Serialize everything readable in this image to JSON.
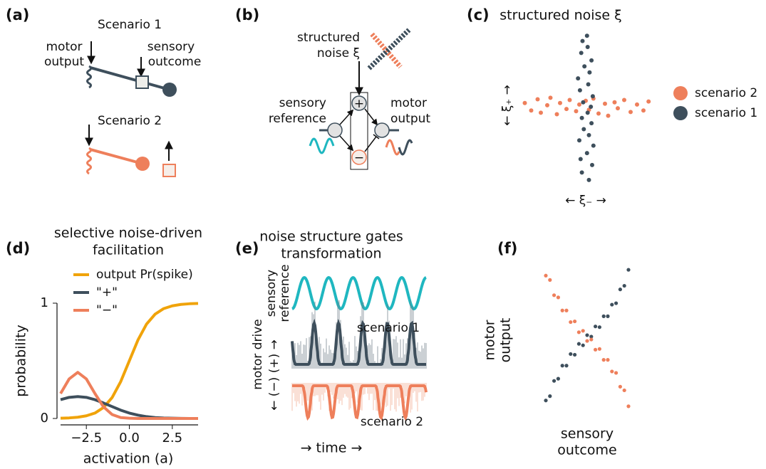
{
  "panel_a": {
    "label": "(a)",
    "scenario_1": "Scenario 1",
    "motor_output": [
      "motor",
      "output"
    ],
    "sensory_outcome": [
      "sensory",
      "outcome"
    ],
    "scenario_2": "Scenario 2"
  },
  "panel_b": {
    "label": "(b)",
    "noise": [
      "structured",
      "noise ξ"
    ],
    "sensory_reference": [
      "sensory",
      "reference"
    ],
    "motor_output": [
      "motor",
      "output"
    ],
    "plus": "+",
    "minus": "−"
  },
  "panel_c": {
    "label": "(c)",
    "type": "scatter",
    "title": "structured noise ξ",
    "y_label": "← ξ₊ →",
    "x_label": "← ξ₋ →",
    "xlim": [
      -1,
      1
    ],
    "ylim": [
      -1,
      1
    ],
    "series": [
      {
        "name": "scenario 2",
        "color": "#ee7f5b",
        "points": [
          [
            -0.95,
            0.05
          ],
          [
            -0.85,
            -0.05
          ],
          [
            -0.75,
            0.1
          ],
          [
            -0.7,
            -0.08
          ],
          [
            -0.6,
            0.02
          ],
          [
            -0.55,
            0.12
          ],
          [
            -0.45,
            -0.1
          ],
          [
            -0.4,
            0.05
          ],
          [
            -0.3,
            -0.03
          ],
          [
            -0.25,
            0.09
          ],
          [
            -0.15,
            -0.06
          ],
          [
            -0.1,
            0.03
          ],
          [
            0,
            0.08
          ],
          [
            0.05,
            -0.04
          ],
          [
            0.12,
            0.11
          ],
          [
            0.2,
            -0.09
          ],
          [
            0.3,
            0.04
          ],
          [
            0.35,
            -0.12
          ],
          [
            0.45,
            0.06
          ],
          [
            0.5,
            -0.02
          ],
          [
            0.6,
            0.09
          ],
          [
            0.7,
            -0.07
          ],
          [
            0.8,
            0.03
          ],
          [
            0.9,
            -0.05
          ],
          [
            0.98,
            0.07
          ]
        ]
      },
      {
        "name": "scenario 1",
        "color": "#3e4f5c",
        "points": [
          [
            0.05,
            -0.98
          ],
          [
            -0.06,
            -0.88
          ],
          [
            0.1,
            -0.78
          ],
          [
            -0.08,
            -0.7
          ],
          [
            0.02,
            -0.62
          ],
          [
            0.12,
            -0.52
          ],
          [
            -0.1,
            -0.45
          ],
          [
            0.05,
            -0.38
          ],
          [
            -0.03,
            -0.3
          ],
          [
            0.09,
            -0.22
          ],
          [
            -0.06,
            -0.15
          ],
          [
            0.03,
            -0.08
          ],
          [
            0.08,
            0
          ],
          [
            -0.04,
            0.06
          ],
          [
            0.11,
            0.14
          ],
          [
            -0.09,
            0.22
          ],
          [
            0.04,
            0.3
          ],
          [
            -0.12,
            0.38
          ],
          [
            0.06,
            0.46
          ],
          [
            -0.02,
            0.54
          ],
          [
            0.09,
            0.62
          ],
          [
            -0.07,
            0.72
          ],
          [
            0.03,
            0.8
          ],
          [
            -0.05,
            0.88
          ],
          [
            0.02,
            0.95
          ]
        ]
      }
    ]
  },
  "panel_d": {
    "label": "(d)",
    "type": "line",
    "title": [
      "selective noise-driven",
      "facilitation"
    ],
    "x_label": "activation (a)",
    "y_label": "probability",
    "x": [
      -4,
      -3.5,
      -3,
      -2.5,
      -2,
      -1.5,
      -1,
      -0.5,
      0,
      0.5,
      1,
      1.5,
      2,
      2.5,
      3,
      3.5,
      4
    ],
    "series": [
      {
        "name": "output Pr(spike)",
        "color": "#f0a30a",
        "values": [
          0.0025,
          0.005,
          0.011,
          0.023,
          0.047,
          0.095,
          0.182,
          0.32,
          0.5,
          0.68,
          0.818,
          0.905,
          0.953,
          0.977,
          0.989,
          0.995,
          0.998
        ]
      },
      {
        "name": "\"+\"",
        "color": "#3e4f5c",
        "values": [
          0.163,
          0.183,
          0.19,
          0.183,
          0.163,
          0.134,
          0.103,
          0.072,
          0.047,
          0.029,
          0.016,
          0.008,
          0.004,
          0.002,
          0.001,
          0,
          0
        ]
      },
      {
        "name": "\"−\"",
        "color": "#ee7f5b",
        "values": [
          0.216,
          0.343,
          0.4,
          0.343,
          0.216,
          0.1,
          0.034,
          0.008,
          0.002,
          0,
          0,
          0,
          0,
          0,
          0,
          0,
          0
        ]
      }
    ],
    "xlim": [
      -4,
      4
    ],
    "ylim": [
      0,
      1
    ],
    "xticks": [
      {
        "value": -2.5,
        "label": "−2.5"
      },
      {
        "value": 0,
        "label": "0.0"
      },
      {
        "value": 2.5,
        "label": "2.5"
      }
    ],
    "yticks": [
      0,
      1
    ]
  },
  "panel_e": {
    "label": "(e)",
    "title": [
      "noise structure gates",
      "transformation"
    ],
    "sensory_reference": [
      "sensory",
      "reference"
    ],
    "motor_drive": "motor drive",
    "direction": "← (−) (+) →",
    "scenario_1": "scenario 1",
    "scenario_2": "scenario 2",
    "time": "→ time →"
  },
  "panel_f": {
    "label": "(f)",
    "type": "scatter",
    "y_label": [
      "motor",
      "output"
    ],
    "x_label": [
      "sensory",
      "outcome"
    ],
    "xlim": [
      -1,
      1
    ],
    "ylim": [
      -1,
      1
    ],
    "series": [
      {
        "color": "#3e4f5c",
        "points": [
          [
            -1,
            -0.86
          ],
          [
            -0.9,
            -0.8
          ],
          [
            -0.8,
            -0.59
          ],
          [
            -0.7,
            -0.56
          ],
          [
            -0.6,
            -0.38
          ],
          [
            -0.5,
            -0.38
          ],
          [
            -0.4,
            -0.22
          ],
          [
            -0.3,
            -0.23
          ],
          [
            -0.2,
            -0.08
          ],
          [
            -0.1,
            -0.1
          ],
          [
            0,
            0.04
          ],
          [
            0.1,
            0.02
          ],
          [
            0.2,
            0.16
          ],
          [
            0.3,
            0.15
          ],
          [
            0.4,
            0.3
          ],
          [
            0.5,
            0.3
          ],
          [
            0.6,
            0.46
          ],
          [
            0.7,
            0.48
          ],
          [
            0.8,
            0.67
          ],
          [
            0.9,
            0.72
          ],
          [
            1,
            0.94
          ]
        ]
      },
      {
        "color": "#ee7f5b",
        "points": [
          [
            -1,
            0.86
          ],
          [
            -0.9,
            0.8
          ],
          [
            -0.8,
            0.59
          ],
          [
            -0.7,
            0.56
          ],
          [
            -0.6,
            0.38
          ],
          [
            -0.5,
            0.38
          ],
          [
            -0.4,
            0.22
          ],
          [
            -0.3,
            0.23
          ],
          [
            -0.2,
            0.08
          ],
          [
            -0.1,
            0.1
          ],
          [
            0,
            -0.04
          ],
          [
            0.1,
            -0.02
          ],
          [
            0.2,
            -0.16
          ],
          [
            0.3,
            -0.15
          ],
          [
            0.4,
            -0.3
          ],
          [
            0.5,
            -0.3
          ],
          [
            0.6,
            -0.46
          ],
          [
            0.7,
            -0.48
          ],
          [
            0.8,
            -0.67
          ],
          [
            0.9,
            -0.72
          ],
          [
            1,
            -0.94
          ]
        ]
      }
    ]
  }
}
